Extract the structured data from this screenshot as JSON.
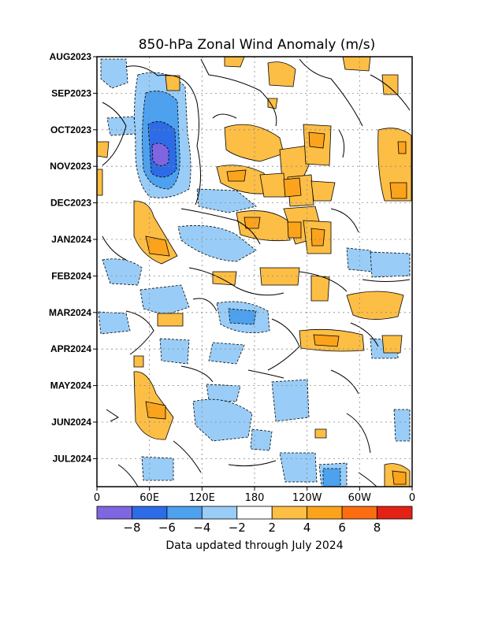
{
  "chart_data": {
    "type": "heatmap",
    "title": "850-hPa Zonal Wind Anomaly (m/s)",
    "footer": "Data updated through July 2024",
    "x_ticks": [
      "0",
      "60E",
      "120E",
      "180",
      "120W",
      "60W",
      "0"
    ],
    "y_ticks": [
      "AUG2023",
      "SEP2023",
      "OCT2023",
      "NOV2023",
      "DEC2023",
      "JAN2024",
      "FEB2024",
      "MAR2024",
      "APR2024",
      "MAY2024",
      "JUN2024",
      "JUL2024"
    ],
    "colorbar": {
      "labels": [
        "−8",
        "−6",
        "−4",
        "−2",
        "2",
        "4",
        "6",
        "8"
      ],
      "bins": [
        {
          "range": "< -8",
          "color": "#7f66e0"
        },
        {
          "range": "-8 to -6",
          "color": "#2d6ce6"
        },
        {
          "range": "-6 to -4",
          "color": "#4da1ee"
        },
        {
          "range": "-4 to -2",
          "color": "#99cdf7"
        },
        {
          "range": "-2 to 2",
          "color": "#ffffff"
        },
        {
          "range": "2 to 4",
          "color": "#fdbe45"
        },
        {
          "range": "4 to 6",
          "color": "#fca31c"
        },
        {
          "range": "6 to 8",
          "color": "#fb6d10"
        },
        {
          "range": "> 8",
          "color": "#e42115"
        }
      ]
    },
    "features": [
      {
        "sign": "negative",
        "peak": -9,
        "lon": "~75E",
        "time": "Oct-Nov 2023"
      },
      {
        "sign": "positive",
        "peak": 5,
        "lon": "~150W",
        "time": "Nov 2023-Jan 2024"
      },
      {
        "sign": "positive",
        "peak": 4,
        "lon": "~60E",
        "time": "May-Jun 2024"
      },
      {
        "sign": "negative",
        "peak": -5,
        "lon": "~90W",
        "time": "Jul 2024"
      }
    ]
  }
}
